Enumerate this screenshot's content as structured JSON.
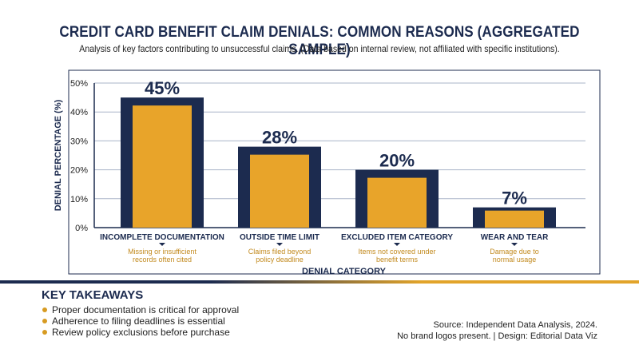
{
  "header": {
    "title": "CREDIT CARD BENEFIT CLAIM DENIALS: COMMON REASONS (AGGREGATED SAMPLE)",
    "subtitle": "Analysis of key factors contributing to unsuccessful claims. (Data based on internal review, not affiliated with specific institutions)."
  },
  "chart_data": {
    "type": "bar",
    "categories": [
      "INCOMPLETE DOCUMENTATION",
      "OUTSIDE TIME LIMIT",
      "EXCLUDED ITEM CATEGORY",
      "WEAR AND TEAR"
    ],
    "values": [
      45,
      28,
      20,
      7
    ],
    "data_labels": [
      "45%",
      "28%",
      "20%",
      "7%"
    ],
    "annotations": [
      [
        "Missing or insufficient",
        "records often cited"
      ],
      [
        "Claims filed beyond",
        "policy deadline"
      ],
      [
        "Items not covered under",
        "benefit terms"
      ],
      [
        "Damage due to",
        "normal usage"
      ]
    ],
    "xlabel": "DENIAL CATEGORY",
    "ylabel": "DENIAL PERCENTAGE (%)",
    "ylim": [
      0,
      50
    ],
    "yticks": [
      "0%",
      "10%",
      "20%",
      "30%",
      "40%",
      "50%"
    ],
    "grid": true,
    "colors": {
      "bar_outer": "#1c2b4f",
      "bar_inner": "#e8a42a",
      "annotation": "#c28a1e",
      "grid": "#aab4c8"
    }
  },
  "takeaways": {
    "title": "KEY TAKEAWAYS",
    "items": [
      "Proper documentation is critical for approval",
      "Adherence to filing deadlines is essential",
      "Review policy exclusions before purchase"
    ]
  },
  "source": {
    "line1": "Source: Independent Data Analysis, 2024.",
    "line2": "No brand logos present. | Design: Editorial Data Viz"
  }
}
